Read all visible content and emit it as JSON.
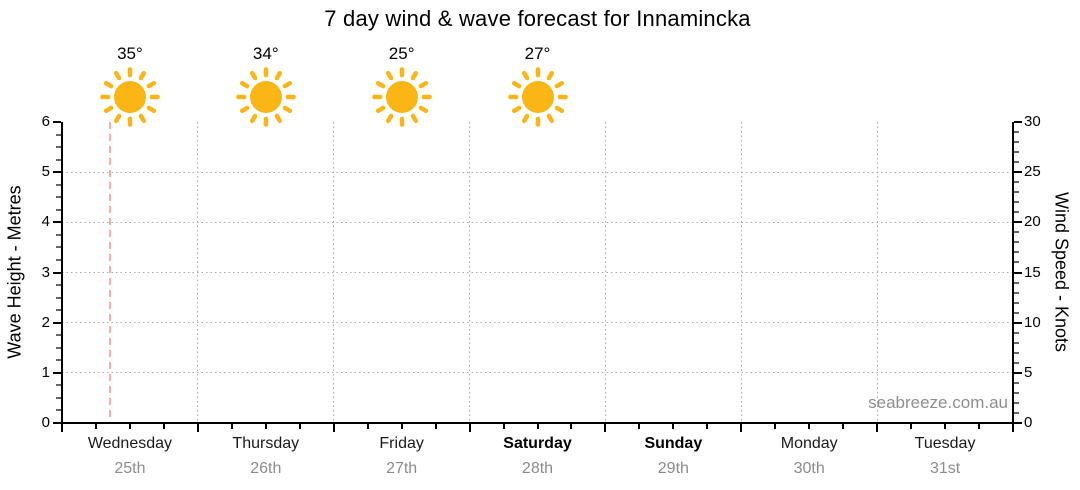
{
  "title": "7 day wind & wave forecast for Innamincka",
  "watermark": "seabreeze.com.au",
  "chart_data": {
    "type": "line",
    "title": "7 day wind & wave forecast for Innamincka",
    "grid": true,
    "series": [],
    "left_axis": {
      "label": "Wave Height - Metres",
      "min": 0,
      "max": 6,
      "major_step": 1,
      "minor_step": 0.25,
      "ticks": [
        0,
        1,
        2,
        3,
        4,
        5,
        6
      ]
    },
    "right_axis": {
      "label": "Wind Speed - Knots",
      "min": 0,
      "max": 30,
      "major_step": 5,
      "minor_step": 1,
      "ticks": [
        0,
        5,
        10,
        15,
        20,
        25,
        30
      ]
    },
    "days": [
      {
        "name": "Wednesday",
        "date": "25th",
        "weekend": false,
        "temperature": "35°",
        "icon": "sunny"
      },
      {
        "name": "Thursday",
        "date": "26th",
        "weekend": false,
        "temperature": "34°",
        "icon": "sunny"
      },
      {
        "name": "Friday",
        "date": "27th",
        "weekend": false,
        "temperature": "25°",
        "icon": "sunny"
      },
      {
        "name": "Saturday",
        "date": "28th",
        "weekend": true,
        "temperature": "27°",
        "icon": "sunny"
      },
      {
        "name": "Sunday",
        "date": "29th",
        "weekend": true,
        "temperature": null,
        "icon": null
      },
      {
        "name": "Monday",
        "date": "30th",
        "weekend": false,
        "temperature": null,
        "icon": null
      },
      {
        "name": "Tuesday",
        "date": "31st",
        "weekend": false,
        "temperature": null,
        "icon": null
      }
    ],
    "now_line_x_fraction": 0.0505,
    "minor_x_ticks_per_day": 3
  },
  "colors": {
    "sun": "#FBB615",
    "now_line": "#F8ACAC",
    "grid": "#ABABAB",
    "axis": "#000000",
    "minor_tick": "#666666",
    "day_text": "#1A1A1A",
    "date_text": "#8C8C8C",
    "watermark_text": "#8F8F8F"
  }
}
